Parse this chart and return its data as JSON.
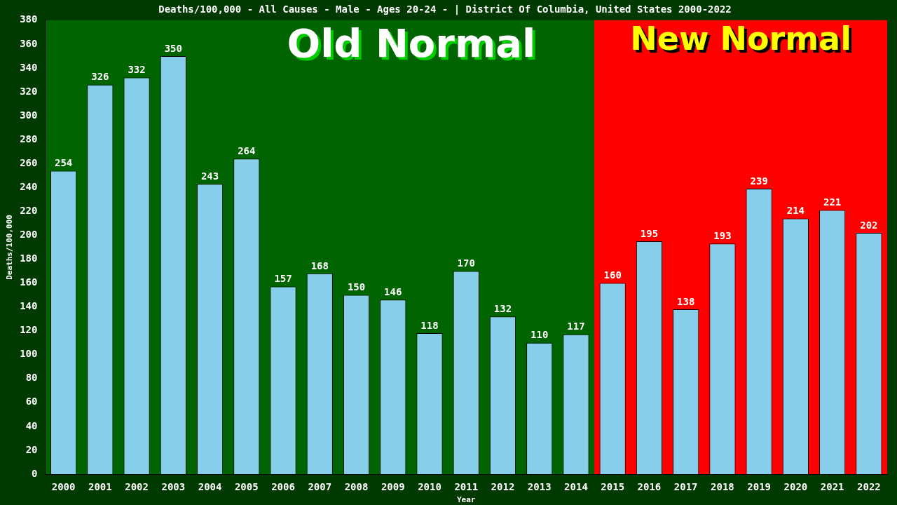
{
  "chart_data": {
    "type": "bar",
    "title": "Deaths/100,000 - All Causes - Male - Ages 20-24 - | District Of Columbia, United States 2000-2022",
    "xlabel": "Year",
    "ylabel": "Deaths/100,000",
    "categories": [
      "2000",
      "2001",
      "2002",
      "2003",
      "2004",
      "2005",
      "2006",
      "2007",
      "2008",
      "2009",
      "2010",
      "2011",
      "2012",
      "2013",
      "2014",
      "2015",
      "2016",
      "2017",
      "2018",
      "2019",
      "2020",
      "2021",
      "2022"
    ],
    "values": [
      254,
      326,
      332,
      350,
      243,
      264,
      157,
      168,
      150,
      146,
      118,
      170,
      132,
      110,
      117,
      160,
      195,
      138,
      193,
      239,
      214,
      221,
      202
    ],
    "color": "#87ceeb",
    "data_labels": true,
    "ylim": [
      0,
      380
    ],
    "yticks": [
      0,
      20,
      40,
      60,
      80,
      100,
      120,
      140,
      160,
      180,
      200,
      220,
      240,
      260,
      280,
      300,
      320,
      340,
      360,
      380
    ],
    "grid": false,
    "legend": false,
    "bands": [
      {
        "axis": "x",
        "from": "2000",
        "to": "2014",
        "label": "Old Normal",
        "color": "#006400"
      },
      {
        "axis": "x",
        "from": "2015",
        "to": "2022",
        "label": "New Normal",
        "color": "#ff0000"
      }
    ]
  }
}
